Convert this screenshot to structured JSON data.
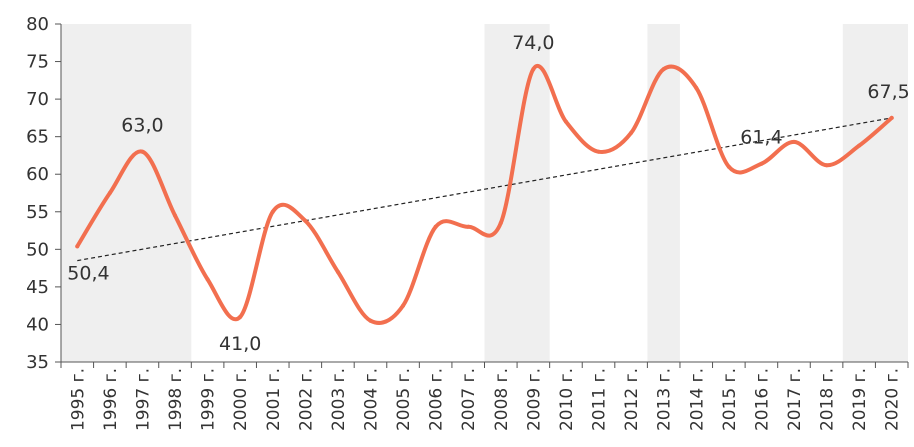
{
  "chart_data": {
    "type": "line",
    "title": "",
    "xlabel": "",
    "ylabel": "",
    "ylim": [
      35,
      80
    ],
    "yticks": [
      35,
      40,
      45,
      50,
      55,
      60,
      65,
      70,
      75,
      80
    ],
    "grid": false,
    "legend": "none",
    "categories": [
      "1995 г.",
      "1996 г.",
      "1997 г.",
      "1998 г.",
      "1999 г.",
      "2000 г.",
      "2001 г.",
      "2002 г.",
      "2003 г.",
      "2004 г.",
      "2005 г.",
      "2006 г.",
      "2007 г.",
      "2008 г.",
      "2009 г.",
      "2010 г.",
      "2011 г.",
      "2012 г.",
      "2013 г.",
      "2014 г.",
      "2015 г.",
      "2016 г.",
      "2017 г.",
      "2018 г.",
      "2019 г.",
      "2020 г."
    ],
    "series": [
      {
        "values": [
          50.4,
          57.5,
          63.0,
          54.5,
          46.0,
          41.0,
          55.0,
          53.8,
          47.0,
          40.5,
          42.5,
          53.0,
          53.0,
          53.5,
          74.0,
          67.0,
          63.0,
          65.5,
          74.0,
          71.5,
          61.0,
          61.4,
          64.3,
          61.2,
          63.8,
          67.5
        ],
        "color": "#f26f4f"
      }
    ],
    "trendline": {
      "start": 48.5,
      "end": 67.5,
      "style": "dashed",
      "color": "#222222"
    },
    "shaded_ranges": [
      {
        "from": "1995 г.",
        "to": "1998 г."
      },
      {
        "from": "2008 г.",
        "to": "2009 г."
      },
      {
        "from": "2013 г.",
        "to": "2013 г."
      },
      {
        "from": "2019 г.",
        "to": "2020 г."
      }
    ],
    "shade_color": "#efefef",
    "data_labels": [
      {
        "category": "1995 г.",
        "text": "50,4"
      },
      {
        "category": "1997 г.",
        "text": "63,0"
      },
      {
        "category": "2000 г.",
        "text": "41,0"
      },
      {
        "category": "2009 г.",
        "text": "74,0"
      },
      {
        "category": "2016 г.",
        "text": "61,4"
      },
      {
        "category": "2020 г.",
        "text": "67,5"
      }
    ]
  }
}
